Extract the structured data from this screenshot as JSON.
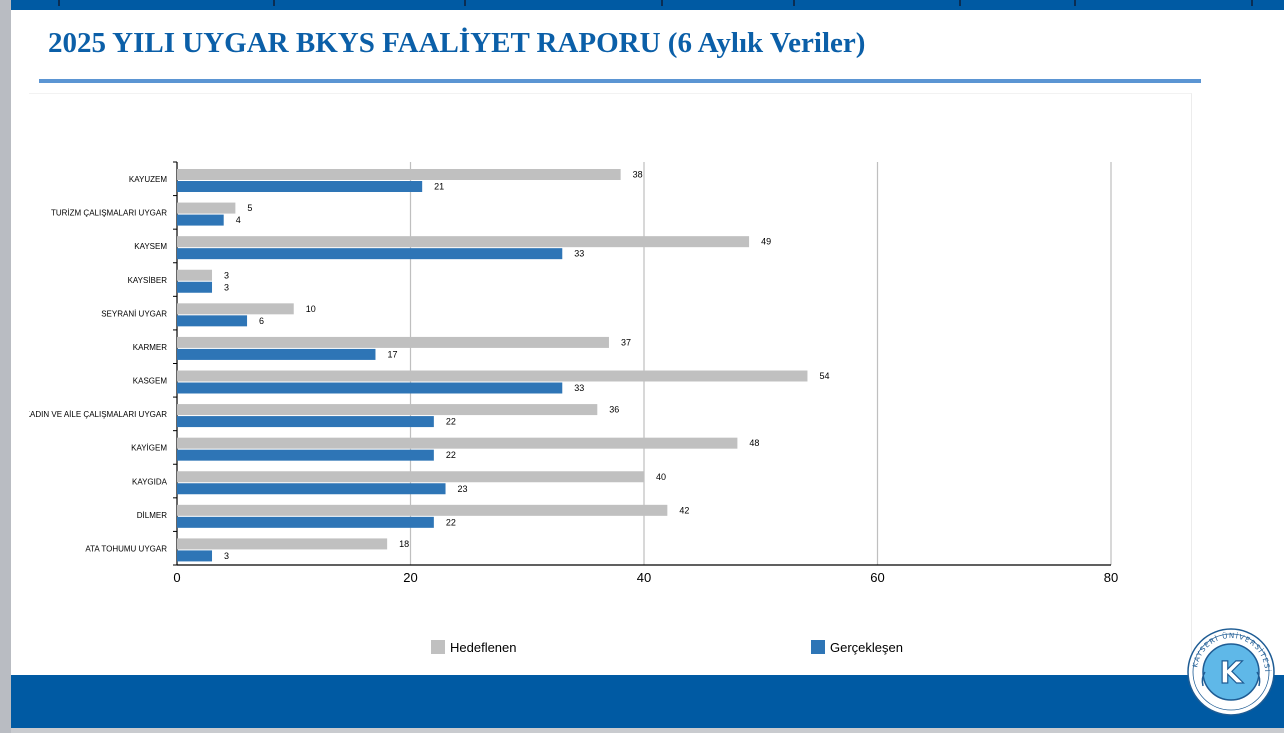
{
  "header": {
    "title": "2025 YILI UYGAR BKYS FAALİYET RAPORU (6 Aylık Veriler)"
  },
  "colors": {
    "brand_blue": "#005aa3",
    "title_blue": "#0b5fa8",
    "rule_blue": "#5b95d3",
    "series_target": "#c0c0c0",
    "series_actual": "#2e75b6"
  },
  "logo": {
    "icon": "university-seal-icon",
    "letter": "K",
    "ring_text": "KAYSERİ ÜNİVERSİTESİ"
  },
  "chart_data": {
    "type": "bar",
    "orientation": "horizontal",
    "title": "",
    "xlabel": "",
    "ylabel": "",
    "xlim": [
      0,
      80
    ],
    "x_ticks": [
      "0",
      "20",
      "40",
      "60",
      "80"
    ],
    "grid": true,
    "legend_position": "bottom",
    "categories": [
      "KAYUZEM",
      "TURİZM ÇALIŞMALARI UYGAR",
      "KAYSEM",
      "KAYSİBER",
      "SEYRANİ UYGAR",
      "KARMER",
      "KASGEM",
      "KADIN VE AİLE ÇALIŞMALARI UYGAR",
      "KAYİGEM",
      "KAYGIDA",
      "DİLMER",
      "ATA TOHUMU UYGAR"
    ],
    "series": [
      {
        "name": "Hedeflenen",
        "color": "#c0c0c0",
        "values": [
          38,
          5,
          49,
          3,
          10,
          37,
          54,
          36,
          48,
          40,
          42,
          18
        ]
      },
      {
        "name": "Gerçekleşen",
        "color": "#2e75b6",
        "values": [
          21,
          4,
          33,
          3,
          6,
          17,
          33,
          22,
          22,
          23,
          22,
          3
        ]
      }
    ]
  }
}
